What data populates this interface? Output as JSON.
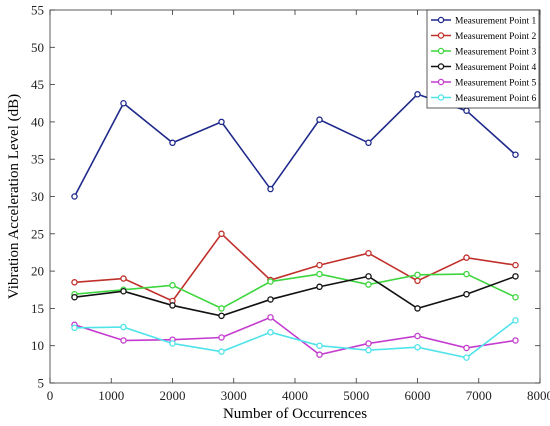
{
  "chart_data": {
    "type": "line",
    "xlabel": "Number of Occurrences",
    "ylabel": "Vibration Acceleration Level (dB)",
    "xlim": [
      0,
      8000
    ],
    "ylim": [
      5,
      55
    ],
    "xticks": [
      0,
      1000,
      2000,
      3000,
      4000,
      5000,
      6000,
      7000,
      8000
    ],
    "yticks": [
      5,
      10,
      15,
      20,
      25,
      30,
      35,
      40,
      45,
      50,
      55
    ],
    "grid": false,
    "legend_position": "top-right",
    "x": [
      400,
      1200,
      2000,
      2800,
      3600,
      4400,
      5200,
      6000,
      6800,
      7600
    ],
    "series": [
      {
        "name": "Measurement Point 1",
        "color": "#1f2a8c",
        "values": [
          30.0,
          42.5,
          37.2,
          40.0,
          31.0,
          40.3,
          37.2,
          43.7,
          41.5,
          35.6
        ]
      },
      {
        "name": "Measurement Point 2",
        "color": "#c0302b",
        "values": [
          18.5,
          19.0,
          16.0,
          25.0,
          18.8,
          20.8,
          22.4,
          18.7,
          21.8,
          20.8
        ]
      },
      {
        "name": "Measurement Point 3",
        "color": "#3ed63e",
        "values": [
          16.9,
          17.5,
          18.1,
          15.0,
          18.6,
          19.6,
          18.2,
          19.5,
          19.6,
          16.5
        ]
      },
      {
        "name": "Measurement Point 4",
        "color": "#111111",
        "values": [
          16.5,
          17.3,
          15.4,
          14.0,
          16.2,
          17.9,
          19.3,
          15.0,
          16.9,
          19.3
        ]
      },
      {
        "name": "Measurement Point 5",
        "color": "#c43ccf",
        "values": [
          12.8,
          10.7,
          10.8,
          11.1,
          13.8,
          8.8,
          10.3,
          11.3,
          9.7,
          10.7
        ]
      },
      {
        "name": "Measurement Point 6",
        "color": "#4fe3ea",
        "values": [
          12.4,
          12.5,
          10.3,
          9.2,
          11.8,
          10.0,
          9.4,
          9.8,
          8.4,
          13.4
        ]
      }
    ]
  }
}
